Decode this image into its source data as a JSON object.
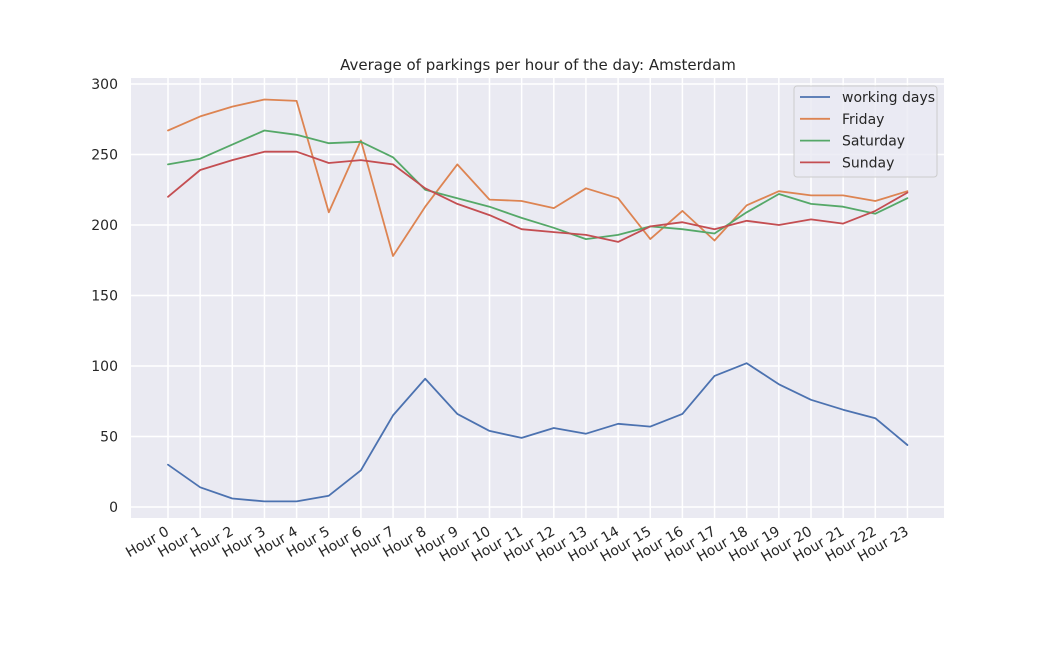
{
  "chart_data": {
    "type": "line",
    "title": "Average of parkings per hour of the day: Amsterdam",
    "xlabel": "",
    "ylabel": "",
    "categories": [
      "Hour 0",
      "Hour 1",
      "Hour 2",
      "Hour 3",
      "Hour 4",
      "Hour 5",
      "Hour 6",
      "Hour 7",
      "Hour 8",
      "Hour 9",
      "Hour 10",
      "Hour 11",
      "Hour 12",
      "Hour 13",
      "Hour 14",
      "Hour 15",
      "Hour 16",
      "Hour 17",
      "Hour 18",
      "Hour 19",
      "Hour 20",
      "Hour 21",
      "Hour 22",
      "Hour 23"
    ],
    "ylim": [
      -9,
      302
    ],
    "yticks": [
      0,
      50,
      100,
      150,
      200,
      250,
      300
    ],
    "grid": true,
    "legend_position": "top-right",
    "background_color": "#EAEAF2",
    "series": [
      {
        "name": "working days",
        "color": "#4C72B0",
        "values": [
          30,
          14,
          6,
          4,
          4,
          8,
          26,
          65,
          91,
          66,
          54,
          49,
          56,
          52,
          59,
          57,
          66,
          93,
          102,
          87,
          76,
          69,
          63,
          44
        ]
      },
      {
        "name": "Friday",
        "color": "#DD8452",
        "values": [
          267,
          277,
          284,
          289,
          288,
          209,
          260,
          178,
          213,
          243,
          218,
          217,
          212,
          226,
          219,
          190,
          210,
          189,
          214,
          224,
          221,
          221,
          217,
          224
        ]
      },
      {
        "name": "Saturday",
        "color": "#55A868",
        "values": [
          243,
          247,
          257,
          267,
          264,
          258,
          259,
          248,
          225,
          219,
          213,
          205,
          198,
          190,
          193,
          199,
          197,
          194,
          209,
          222,
          215,
          213,
          208,
          219
        ]
      },
      {
        "name": "Sunday",
        "color": "#C44E52",
        "values": [
          220,
          239,
          246,
          252,
          252,
          244,
          246,
          243,
          226,
          215,
          207,
          197,
          195,
          193,
          188,
          199,
          202,
          197,
          203,
          200,
          204,
          201,
          210,
          223
        ]
      }
    ]
  }
}
